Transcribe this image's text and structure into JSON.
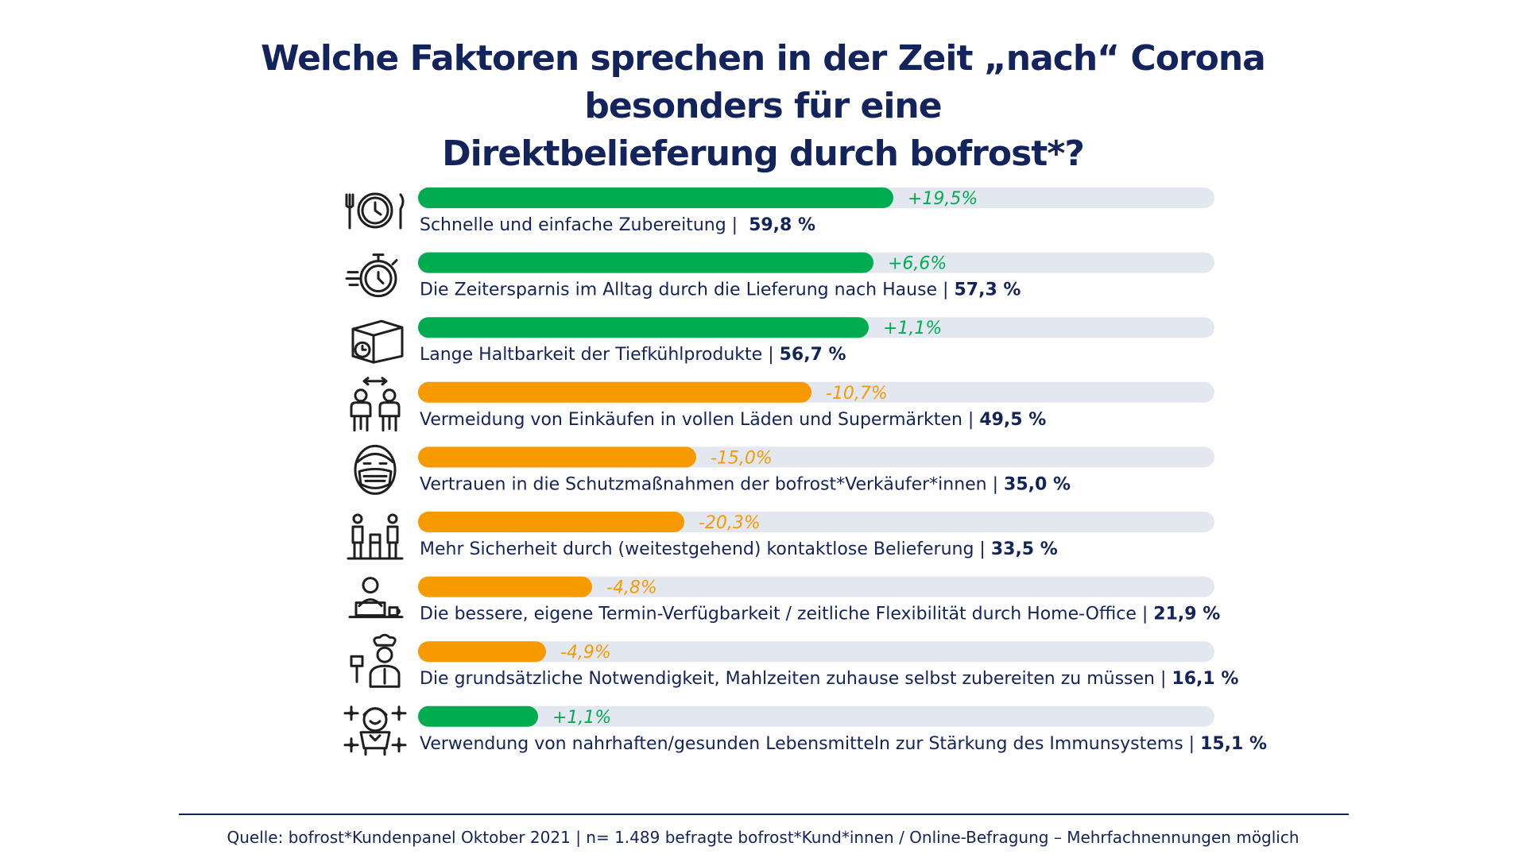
{
  "title": {
    "line1": "Welche Faktoren sprechen in der Zeit „nach“ Corona besonders für eine",
    "line2": "Direktbelieferung durch bofrost*?"
  },
  "colors": {
    "title": "#13235b",
    "label": "#13235b",
    "positive": "#00ac4f",
    "negative": "#f79a00",
    "track": "#e3e8f0",
    "icon": "#1f1f1f"
  },
  "chart_data": {
    "type": "bar",
    "orientation": "horizontal",
    "xlim": [
      0,
      100
    ],
    "grid": false,
    "legend": "none",
    "items": [
      {
        "label": "Schnelle und einfache Zubereitung",
        "separator": " |  ",
        "value": 59.8,
        "value_label": "59,8 %",
        "change_label": "+19,5%",
        "change": 19.5,
        "icon": "plate-clock-cutlery-icon"
      },
      {
        "label": "Die Zeitersparnis im Alltag durch die Lieferung nach Hause",
        "separator": " | ",
        "value": 57.3,
        "value_label": "57,3 %",
        "change_label": "+6,6%",
        "change": 6.6,
        "icon": "stopwatch-icon"
      },
      {
        "label": "Lange Haltbarkeit der Tiefkühlprodukte",
        "separator": " | ",
        "value": 56.7,
        "value_label": "56,7 %",
        "change_label": "+1,1%",
        "change": 1.1,
        "icon": "box-clock-icon"
      },
      {
        "label": "Vermeidung von Einkäufen in vollen Läden und Supermärkten",
        "separator": " | ",
        "value": 49.5,
        "value_label": "49,5 %",
        "change_label": "-10,7%",
        "change": -10.7,
        "icon": "social-distance-icon"
      },
      {
        "label": "Vertrauen in die Schutzmaßnahmen der bofrost*Verkäufer*innen",
        "separator": " | ",
        "value": 35.0,
        "value_label": "35,0 %",
        "change_label": "-15,0%",
        "change": -15.0,
        "icon": "face-mask-icon"
      },
      {
        "label": "Mehr Sicherheit durch (weitestgehend) kontaktlose Belieferung",
        "separator": " | ",
        "value": 33.5,
        "value_label": "33,5 %",
        "change_label": "-20,3%",
        "change": -20.3,
        "icon": "contactless-delivery-icon"
      },
      {
        "label": "Die bessere, eigene Termin-Verfügbarkeit / zeitliche Flexibilität durch Home-Office",
        "separator": " | ",
        "value": 21.9,
        "value_label": "21,9 %",
        "change_label": "-4,8%",
        "change": -4.8,
        "icon": "home-office-icon"
      },
      {
        "label": "Die grundsätzliche Notwendigkeit, Mahlzeiten zuhause selbst zubereiten zu müssen",
        "separator": " | ",
        "value": 16.1,
        "value_label": "16,1 %",
        "change_label": "-4,9%",
        "change": -4.9,
        "icon": "chef-icon"
      },
      {
        "label": "Verwendung von nahrhaften/gesunden Lebensmitteln zur Stärkung des Immunsystems",
        "separator": " | ",
        "value": 15.1,
        "value_label": "15,1 %",
        "change_label": "+1,1%",
        "change": 1.1,
        "icon": "healthy-immune-icon"
      }
    ]
  },
  "footer": {
    "source": "Quelle: bofrost*Kundenpanel Oktober 2021 | n= 1.489 befragte bofrost*Kund*innen / Online-Befragung – Mehrfachnennungen möglich"
  }
}
